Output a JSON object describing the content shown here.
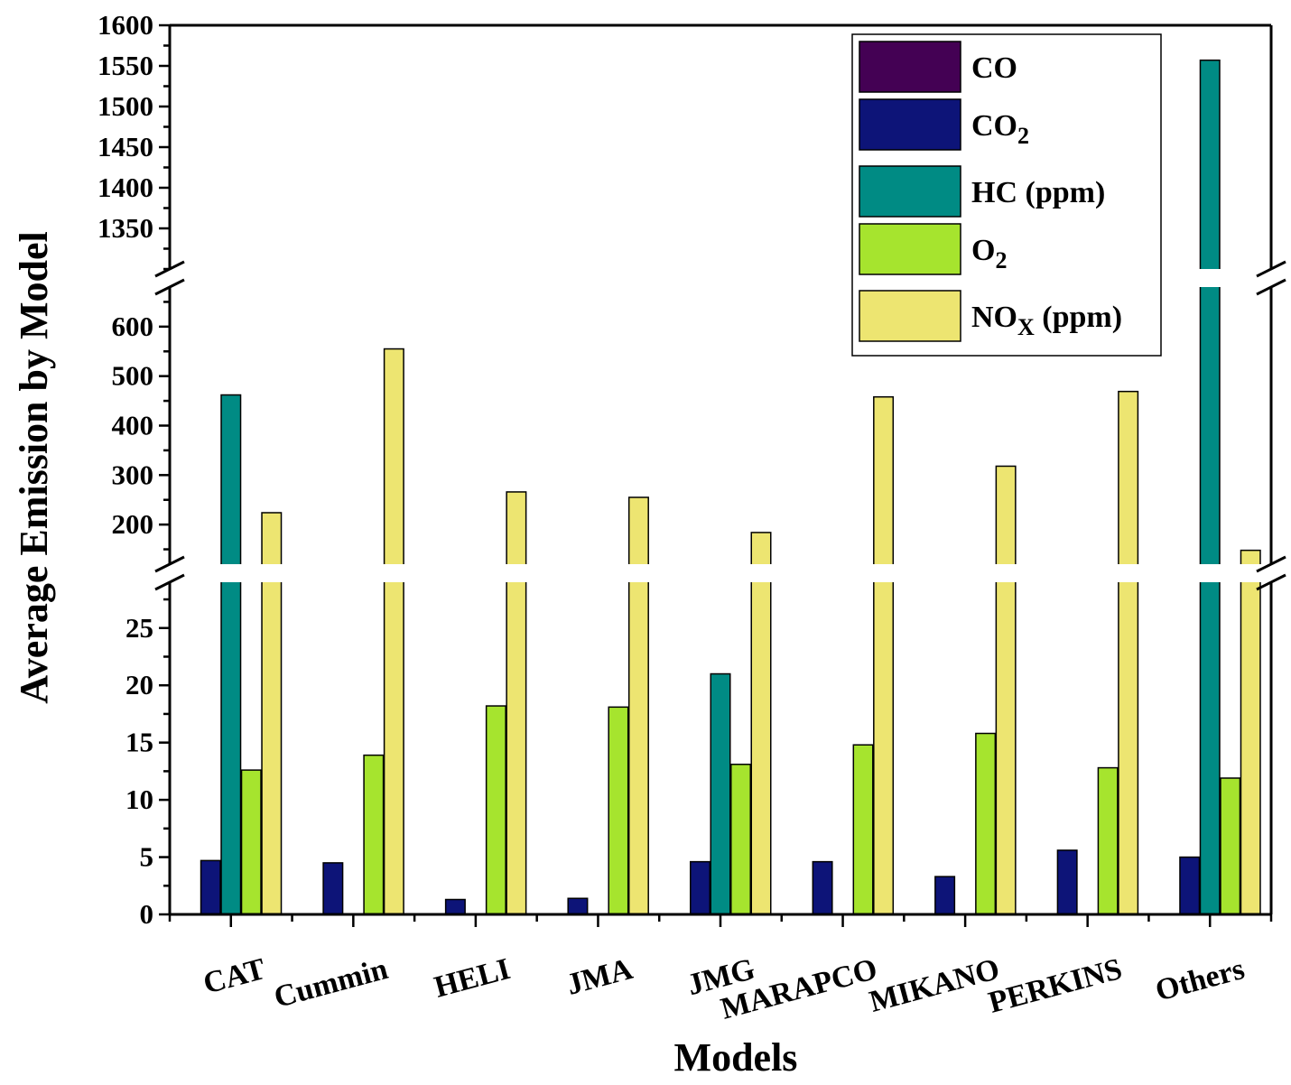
{
  "chart_data": {
    "type": "bar",
    "xlabel": "Models",
    "ylabel": "Average Emission by Model",
    "categories": [
      "CAT",
      "Cummin",
      "HELI",
      "JMA",
      "JMG",
      "MARAPCO",
      "MIKANO",
      "PERKINS",
      "Others"
    ],
    "series": [
      {
        "name": "CO",
        "color": "#440154",
        "values": [
          0,
          0,
          0,
          0,
          0,
          0,
          0,
          0,
          0
        ]
      },
      {
        "name": "CO2",
        "legend_main": "CO",
        "legend_sub": "2",
        "color": "#0d1478",
        "values": [
          4.7,
          4.5,
          1.3,
          1.4,
          4.6,
          4.6,
          3.3,
          5.6,
          5.0
        ]
      },
      {
        "name": "HC (ppm)",
        "color": "#008b84",
        "values": [
          462,
          null,
          null,
          null,
          21.0,
          null,
          null,
          null,
          1557
        ]
      },
      {
        "name": "O2",
        "legend_main": "O",
        "legend_sub": "2",
        "color": "#a6e42e",
        "values": [
          12.6,
          13.9,
          18.2,
          18.1,
          13.1,
          14.8,
          15.8,
          12.8,
          11.9
        ]
      },
      {
        "name": "NOX (ppm)",
        "legend_main": "NO",
        "legend_sub": "X",
        "legend_tail": " (ppm)",
        "color": "#ede571",
        "values": [
          224,
          555,
          266,
          255,
          184,
          458,
          318,
          469,
          148
        ]
      }
    ],
    "y_segments": [
      {
        "range": [
          0,
          29
        ],
        "ticks": [
          0,
          5,
          10,
          15,
          20,
          25
        ],
        "minor_step": 2.5
      },
      {
        "range": [
          120,
          680
        ],
        "ticks": [
          200,
          300,
          400,
          500,
          600
        ],
        "minor_step": 50
      },
      {
        "range": [
          1300,
          1600
        ],
        "ticks": [
          1350,
          1400,
          1450,
          1500,
          1550,
          1600
        ],
        "minor_step": 25
      }
    ],
    "legend_position": "top-right",
    "grid": false
  }
}
